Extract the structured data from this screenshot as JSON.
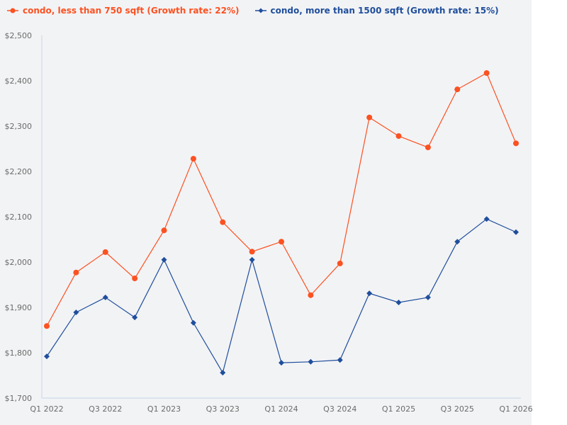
{
  "legend": {
    "series0_label": "condo, less than 750 sqft (Growth rate: 22%)",
    "series1_label": "condo, more than 1500 sqft (Growth rate: 15%)"
  },
  "colors": {
    "series0": "#fc5121",
    "series1": "#1f4e9c",
    "background": "#f2f3f5",
    "axis": "#c8d4e6"
  },
  "chart_data": {
    "type": "line",
    "title": "",
    "xlabel": "",
    "ylabel": "",
    "ylim": [
      1700,
      2500
    ],
    "grid": false,
    "legend_position": "top-left",
    "y_ticks": [
      "$1,700",
      "$1,800",
      "$1,900",
      "$2,000",
      "$2,100",
      "$2,200",
      "$2,300",
      "$2,400",
      "$2,500"
    ],
    "x_tick_labels": [
      "Q1 2022",
      "Q3 2022",
      "Q1 2023",
      "Q3 2023",
      "Q1 2024",
      "Q3 2024",
      "Q1 2025",
      "Q3 2025",
      "Q1 2026"
    ],
    "categories": [
      "Q1 2022",
      "Q2 2022",
      "Q3 2022",
      "Q4 2022",
      "Q1 2023",
      "Q2 2023",
      "Q3 2023",
      "Q4 2023",
      "Q1 2024",
      "Q2 2024",
      "Q3 2024",
      "Q4 2024",
      "Q1 2025",
      "Q2 2025",
      "Q3 2025",
      "Q4 2025",
      "Q1 2026"
    ],
    "series": [
      {
        "name": "condo, less than 750 sqft (Growth rate: 22%)",
        "marker": "circle",
        "color": "#fc5121",
        "values": [
          1859,
          1977,
          2022,
          1964,
          2070,
          2228,
          2088,
          2023,
          2045,
          1927,
          1997,
          2319,
          2278,
          2253,
          2381,
          2417,
          2262
        ]
      },
      {
        "name": "condo, more than 1500 sqft (Growth rate: 15%)",
        "marker": "diamond",
        "color": "#1f4e9c",
        "values": [
          1792,
          1889,
          1922,
          1878,
          2005,
          1866,
          1756,
          2005,
          1778,
          1780,
          1784,
          1931,
          1911,
          1922,
          2045,
          2095,
          2066
        ]
      }
    ]
  }
}
